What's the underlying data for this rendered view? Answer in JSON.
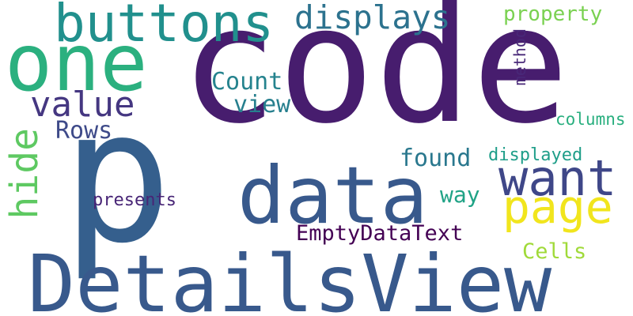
{
  "cloud": {
    "background": "#ffffff",
    "words": [
      {
        "text": "code",
        "color": "#471d6e"
      },
      {
        "text": "p",
        "color": "#355f8d"
      },
      {
        "text": "DetailsView",
        "color": "#38598c"
      },
      {
        "text": "data",
        "color": "#38598c"
      },
      {
        "text": "one",
        "color": "#2bb07f"
      },
      {
        "text": "buttons",
        "color": "#21908d"
      },
      {
        "text": "want",
        "color": "#3f4788"
      },
      {
        "text": "page",
        "color": "#f1e51d"
      },
      {
        "text": "displays",
        "color": "#2c728e"
      },
      {
        "text": "value",
        "color": "#453781"
      },
      {
        "text": "hide",
        "color": "#5ec962"
      },
      {
        "text": "property",
        "color": "#7ad151"
      },
      {
        "text": "Count",
        "color": "#25838e"
      },
      {
        "text": "view",
        "color": "#277f8e"
      },
      {
        "text": "Rows",
        "color": "#3e4a89"
      },
      {
        "text": "found",
        "color": "#2a788e"
      },
      {
        "text": "EmptyDataText",
        "color": "#440154"
      },
      {
        "text": "way",
        "color": "#20a386"
      },
      {
        "text": "Cells",
        "color": "#a0da39"
      },
      {
        "text": "presents",
        "color": "#482576"
      },
      {
        "text": "method",
        "color": "#482878"
      },
      {
        "text": "columns",
        "color": "#29af7f"
      },
      {
        "text": "displayed",
        "color": "#1f9e89"
      }
    ]
  }
}
